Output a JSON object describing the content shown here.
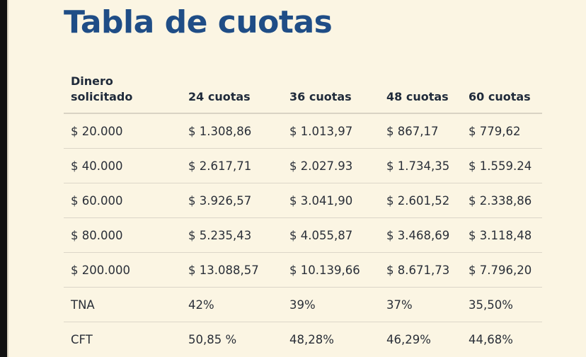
{
  "title": "Tabla de cuotas",
  "table": {
    "headers": [
      [
        "Dinero",
        "solicitado"
      ],
      "24 cuotas",
      "36 cuotas",
      "48 cuotas",
      "60 cuotas"
    ],
    "rows": [
      [
        "$ 20.000",
        "$ 1.308,86",
        "$ 1.013,97",
        "$ 867,17",
        "$ 779,62"
      ],
      [
        "$ 40.000",
        "$ 2.617,71",
        "$ 2.027.93",
        "$ 1.734,35",
        "$ 1.559.24"
      ],
      [
        "$ 60.000",
        "$ 3.926,57",
        "$ 3.041,90",
        "$ 2.601,52",
        "$ 2.338,86"
      ],
      [
        "$ 80.000",
        "$ 5.235,43",
        "$ 4.055,87",
        "$ 3.468,69",
        "$ 3.118,48"
      ],
      [
        "$ 200.000",
        "$ 13.088,57",
        "$ 10.139,66",
        "$ 8.671,73",
        "$ 7.796,20"
      ],
      [
        "TNA",
        "42%",
        "39%",
        "37%",
        "35,50%"
      ],
      [
        "CFT",
        "50,85 %",
        "48,28%",
        "46,29%",
        "44,68%"
      ]
    ]
  }
}
